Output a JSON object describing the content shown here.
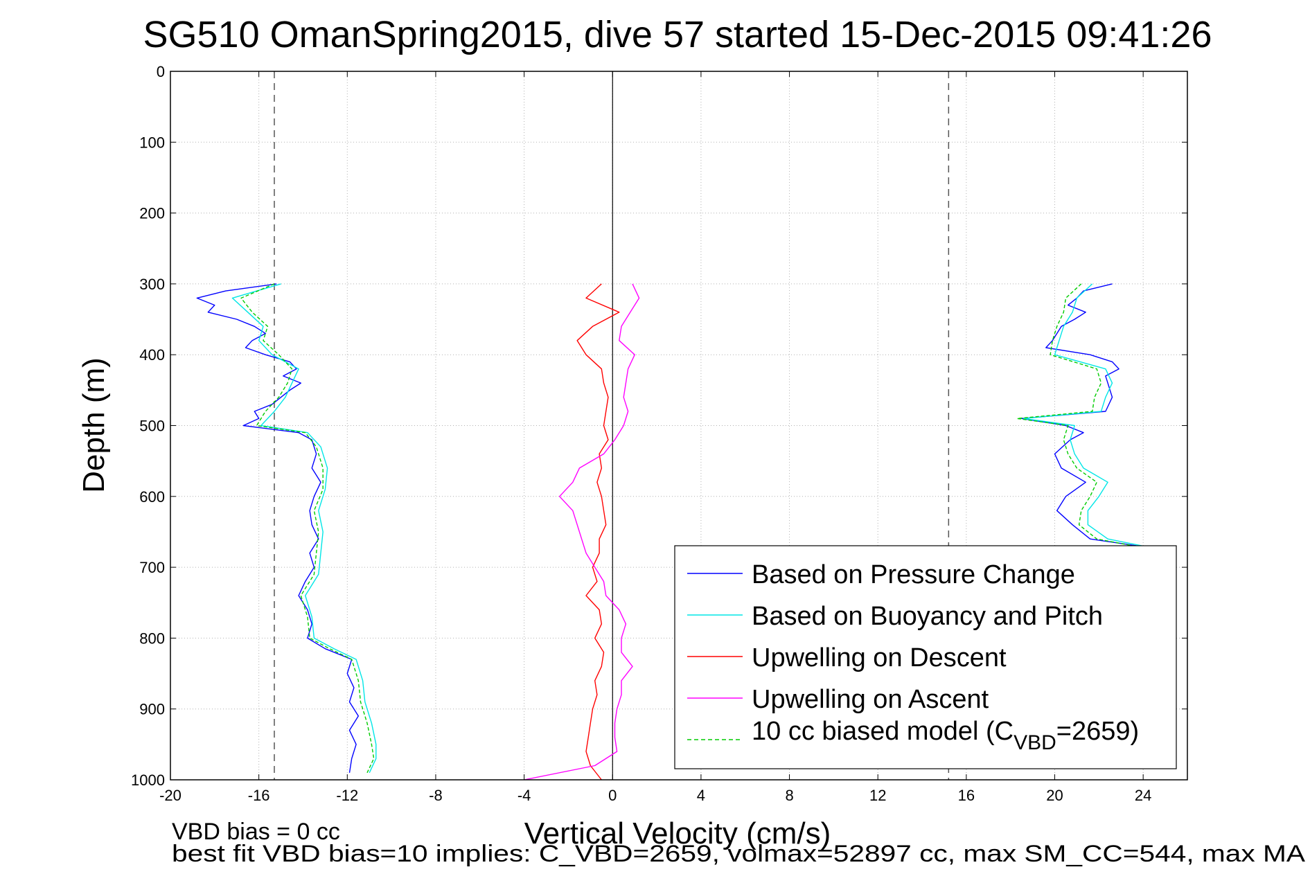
{
  "chart_data": {
    "type": "line",
    "title": "SG510 OmanSpring2015, dive 57 started 15-Dec-2015 09:41:26",
    "xlabel": "Vertical Velocity (cm/s)",
    "ylabel": "Depth (m)",
    "xlim": [
      -20,
      26
    ],
    "ylim": [
      0,
      1000
    ],
    "y_reversed": true,
    "grid": true,
    "legend_position": "bottom-right",
    "x_ticks": [
      -20,
      -16,
      -12,
      -8,
      -4,
      0,
      4,
      8,
      12,
      16,
      20,
      24
    ],
    "y_ticks": [
      0,
      100,
      200,
      300,
      400,
      500,
      600,
      700,
      800,
      900,
      1000
    ],
    "reference_lines": [
      {
        "axis": "x",
        "value": -15.3,
        "style": "dashed",
        "color": "#555555"
      },
      {
        "axis": "x",
        "value": 15.2,
        "style": "dashed",
        "color": "#555555"
      },
      {
        "axis": "x",
        "value": 0,
        "style": "solid",
        "color": "#000000"
      }
    ],
    "series": [
      {
        "name": "Based on Pressure Change",
        "color": "#0000ff",
        "segments": [
          {
            "depth": [
              300,
              310,
              320,
              330,
              340,
              350,
              360,
              370,
              380,
              390,
              400,
              410,
              420,
              430,
              440,
              450,
              460,
              470,
              480,
              490,
              500,
              510,
              520,
              540,
              560,
              580,
              600,
              620,
              640,
              660,
              680,
              700,
              720,
              740,
              760,
              780,
              800,
              815,
              830,
              850,
              870,
              890,
              910,
              930,
              950,
              970,
              990
            ],
            "velocity": [
              -15.2,
              -17.5,
              -18.8,
              -18.0,
              -18.3,
              -17.0,
              -16.2,
              -15.7,
              -16.3,
              -16.6,
              -15.7,
              -14.6,
              -14.3,
              -14.9,
              -14.1,
              -14.6,
              -15.0,
              -15.4,
              -16.2,
              -16.0,
              -16.7,
              -14.2,
              -13.6,
              -13.4,
              -13.6,
              -13.2,
              -13.5,
              -13.7,
              -13.6,
              -13.3,
              -13.7,
              -13.5,
              -13.9,
              -14.2,
              -13.8,
              -13.6,
              -13.8,
              -13.0,
              -11.8,
              -12.0,
              -11.7,
              -11.9,
              -11.5,
              -11.9,
              -11.6,
              -11.8,
              -11.9
            ]
          },
          {
            "depth": [
              300,
              310,
              320,
              330,
              340,
              350,
              360,
              370,
              380,
              390,
              400,
              410,
              420,
              430,
              440,
              460,
              480,
              490,
              500,
              510,
              520,
              540,
              560,
              580,
              600,
              620,
              640,
              660,
              670
            ],
            "velocity": [
              22.6,
              21.3,
              21.0,
              20.6,
              21.4,
              20.9,
              20.3,
              20.1,
              19.9,
              19.6,
              21.6,
              22.6,
              22.9,
              22.3,
              22.4,
              22.6,
              22.3,
              18.5,
              20.5,
              21.3,
              20.7,
              20.0,
              20.3,
              21.4,
              20.5,
              20.1,
              20.8,
              21.6,
              23.8
            ]
          }
        ]
      },
      {
        "name": "Based on Buoyancy and Pitch",
        "color": "#00e6e6",
        "segments": [
          {
            "depth": [
              300,
              320,
              340,
              360,
              380,
              400,
              420,
              440,
              460,
              480,
              500,
              510,
              530,
              560,
              590,
              620,
              650,
              680,
              710,
              740,
              770,
              800,
              815,
              830,
              860,
              890,
              920,
              950,
              970,
              990
            ],
            "velocity": [
              -15.0,
              -17.2,
              -16.5,
              -15.8,
              -16.0,
              -15.4,
              -14.2,
              -14.5,
              -14.8,
              -15.3,
              -15.9,
              -13.8,
              -13.2,
              -12.9,
              -13.0,
              -13.3,
              -13.1,
              -13.2,
              -13.3,
              -13.9,
              -13.6,
              -13.5,
              -12.6,
              -11.6,
              -11.3,
              -11.2,
              -10.9,
              -10.7,
              -10.7,
              -11.0
            ]
          },
          {
            "depth": [
              300,
              320,
              340,
              360,
              380,
              400,
              420,
              440,
              460,
              480,
              490,
              500,
              520,
              540,
              560,
              580,
              600,
              620,
              640,
              660,
              670
            ],
            "velocity": [
              21.7,
              21.0,
              20.8,
              20.4,
              20.2,
              20.0,
              22.3,
              22.6,
              22.3,
              22.1,
              18.6,
              20.9,
              20.7,
              20.9,
              21.3,
              22.4,
              22.0,
              21.5,
              21.5,
              22.4,
              24.0
            ]
          }
        ]
      },
      {
        "name": "Upwelling on Descent",
        "color": "#ff0000",
        "segments": [
          {
            "depth": [
              300,
              320,
              340,
              360,
              380,
              400,
              420,
              440,
              460,
              480,
              500,
              520,
              540,
              560,
              580,
              600,
              620,
              640,
              660,
              680,
              700,
              720,
              740,
              760,
              780,
              800,
              820,
              840,
              860,
              880,
              900,
              920,
              940,
              960,
              980,
              1000
            ],
            "velocity": [
              -0.5,
              -1.2,
              0.3,
              -0.9,
              -1.6,
              -1.2,
              -0.5,
              -0.4,
              -0.2,
              -0.3,
              -0.4,
              -0.2,
              -0.6,
              -0.5,
              -0.7,
              -0.5,
              -0.4,
              -0.3,
              -0.6,
              -0.6,
              -0.9,
              -0.7,
              -1.2,
              -0.6,
              -0.5,
              -0.8,
              -0.4,
              -0.5,
              -0.8,
              -0.7,
              -0.9,
              -1.0,
              -1.1,
              -1.2,
              -1.0,
              -0.5
            ]
          }
        ]
      },
      {
        "name": "Upwelling on Ascent",
        "color": "#ff00ff",
        "segments": [
          {
            "depth": [
              300,
              320,
              340,
              360,
              380,
              400,
              420,
              440,
              460,
              480,
              500,
              520,
              540,
              560,
              580,
              600,
              620,
              640,
              660,
              680,
              700,
              720,
              740,
              760,
              780,
              800,
              820,
              840,
              860,
              880,
              900,
              920,
              940,
              960,
              980,
              1000
            ],
            "velocity": [
              0.9,
              1.2,
              0.8,
              0.4,
              0.3,
              1.0,
              0.7,
              0.6,
              0.5,
              0.7,
              0.5,
              0.1,
              -0.4,
              -1.5,
              -1.8,
              -2.4,
              -1.8,
              -1.6,
              -1.4,
              -1.2,
              -0.8,
              -0.4,
              -0.3,
              0.3,
              0.6,
              0.4,
              0.4,
              0.9,
              0.4,
              0.4,
              0.2,
              0.1,
              0.1,
              0.2,
              -0.8,
              -4.0
            ]
          }
        ]
      },
      {
        "name": "10 cc biased model (C_VBD=2659)",
        "color": "#00cc00",
        "style": "dashed",
        "segments": [
          {
            "depth": [
              300,
              320,
              340,
              360,
              380,
              400,
              420,
              440,
              460,
              480,
              500,
              510,
              530,
              560,
              590,
              620,
              650,
              680,
              710,
              740,
              770,
              800,
              815,
              830,
              860,
              890,
              920,
              950,
              970,
              990
            ],
            "velocity": [
              -15.3,
              -16.8,
              -16.3,
              -15.6,
              -15.8,
              -15.1,
              -14.5,
              -14.7,
              -15.1,
              -15.7,
              -16.1,
              -13.9,
              -13.4,
              -13.1,
              -13.1,
              -13.5,
              -13.3,
              -13.4,
              -13.5,
              -14.1,
              -13.8,
              -13.7,
              -12.8,
              -11.8,
              -11.5,
              -11.4,
              -11.1,
              -10.9,
              -10.8,
              -11.1
            ]
          },
          {
            "depth": [
              300,
              320,
              340,
              360,
              380,
              400,
              420,
              440,
              460,
              480,
              490,
              500,
              520,
              540,
              560,
              580,
              600,
              620,
              640,
              660,
              670
            ],
            "velocity": [
              21.2,
              20.5,
              20.4,
              20.1,
              19.9,
              19.8,
              21.9,
              22.1,
              21.8,
              21.7,
              18.3,
              20.6,
              20.4,
              20.6,
              21.0,
              21.9,
              21.6,
              21.2,
              21.1,
              21.9,
              23.6
            ]
          }
        ]
      }
    ],
    "legend": [
      {
        "label": "Based on Pressure Change",
        "color": "#0000ff",
        "style": "solid"
      },
      {
        "label": "Based on Buoyancy and Pitch",
        "color": "#00e6e6",
        "style": "solid"
      },
      {
        "label": "Upwelling on Descent",
        "color": "#ff0000",
        "style": "solid"
      },
      {
        "label": "Upwelling on Ascent",
        "color": "#ff00ff",
        "style": "solid"
      },
      {
        "label_main": "10 cc biased model (C",
        "label_sub": "VBD",
        "label_tail": "=2659)",
        "color": "#00cc00",
        "style": "dashed"
      }
    ],
    "annotations": [
      "VBD bias = 0 cc",
      "best fit VBD bias=10 implies: C_VBD=2659, volmax=52897 cc, max SM_CC=544, max MA"
    ]
  }
}
